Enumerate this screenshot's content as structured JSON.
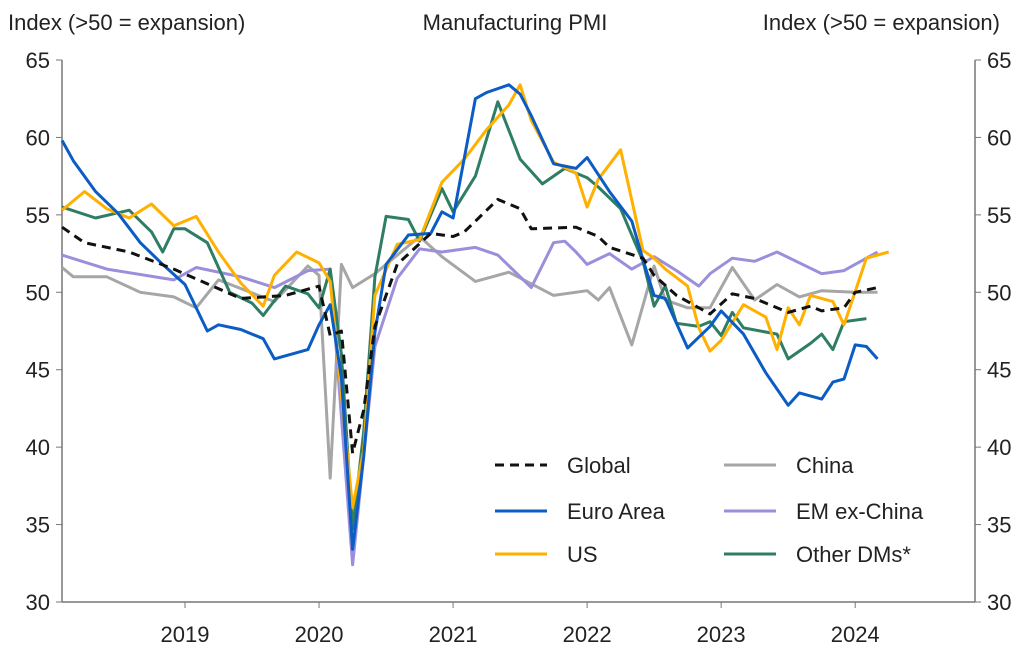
{
  "chart_data": {
    "type": "line",
    "title": "Manufacturing PMI",
    "ylabel_left": "Index (>50 = expansion)",
    "ylabel_right": "Index (>50 = expansion)",
    "ylim": [
      30,
      65
    ],
    "yticks": [
      30,
      35,
      40,
      45,
      50,
      55,
      60,
      65
    ],
    "xlim": [
      "2018-02",
      "2024-06"
    ],
    "xticks": [
      "2019",
      "2020",
      "2021",
      "2022",
      "2023",
      "2024"
    ],
    "grid": false,
    "legend_position": "bottom-right",
    "series": [
      {
        "name": "Global",
        "color": "#111111",
        "dash": true,
        "points": [
          [
            "2018-02",
            54.2
          ],
          [
            "2018-04",
            53.2
          ],
          [
            "2018-08",
            52.6
          ],
          [
            "2018-12",
            51.5
          ],
          [
            "2019-06",
            49.6
          ],
          [
            "2019-10",
            49.8
          ],
          [
            "2020-01",
            50.4
          ],
          [
            "2020-02",
            47.2
          ],
          [
            "2020-03",
            47.5
          ],
          [
            "2020-04",
            39.6
          ],
          [
            "2020-05",
            42.4
          ],
          [
            "2020-06",
            47.8
          ],
          [
            "2020-08",
            51.8
          ],
          [
            "2020-11",
            53.8
          ],
          [
            "2021-01",
            53.6
          ],
          [
            "2021-02",
            53.9
          ],
          [
            "2021-05",
            56.0
          ],
          [
            "2021-07",
            55.4
          ],
          [
            "2021-08",
            54.1
          ],
          [
            "2021-12",
            54.2
          ],
          [
            "2022-02",
            53.6
          ],
          [
            "2022-03",
            52.9
          ],
          [
            "2022-06",
            52.2
          ],
          [
            "2022-07",
            51.1
          ],
          [
            "2022-09",
            49.8
          ],
          [
            "2022-12",
            48.6
          ],
          [
            "2023-02",
            49.9
          ],
          [
            "2023-04",
            49.6
          ],
          [
            "2023-07",
            48.7
          ],
          [
            "2023-09",
            49.1
          ],
          [
            "2023-10",
            48.8
          ],
          [
            "2023-12",
            49.0
          ],
          [
            "2024-01",
            50.0
          ],
          [
            "2024-03",
            50.3
          ]
        ]
      },
      {
        "name": "Euro Area",
        "color": "#0b5cc4",
        "points": [
          [
            "2018-02",
            59.8
          ],
          [
            "2018-03",
            58.5
          ],
          [
            "2018-05",
            56.5
          ],
          [
            "2018-07",
            55.1
          ],
          [
            "2018-09",
            53.2
          ],
          [
            "2018-11",
            51.8
          ],
          [
            "2019-01",
            50.5
          ],
          [
            "2019-03",
            47.5
          ],
          [
            "2019-04",
            47.9
          ],
          [
            "2019-06",
            47.6
          ],
          [
            "2019-08",
            47.0
          ],
          [
            "2019-09",
            45.7
          ],
          [
            "2019-10",
            45.9
          ],
          [
            "2019-12",
            46.3
          ],
          [
            "2020-01",
            47.9
          ],
          [
            "2020-02",
            49.2
          ],
          [
            "2020-03",
            44.5
          ],
          [
            "2020-04",
            33.4
          ],
          [
            "2020-05",
            39.4
          ],
          [
            "2020-06",
            47.4
          ],
          [
            "2020-07",
            51.8
          ],
          [
            "2020-09",
            53.7
          ],
          [
            "2020-11",
            53.8
          ],
          [
            "2020-12",
            55.2
          ],
          [
            "2021-01",
            54.8
          ],
          [
            "2021-03",
            62.5
          ],
          [
            "2021-04",
            62.9
          ],
          [
            "2021-06",
            63.4
          ],
          [
            "2021-07",
            62.8
          ],
          [
            "2021-08",
            61.4
          ],
          [
            "2021-10",
            58.3
          ],
          [
            "2021-12",
            58.0
          ],
          [
            "2022-01",
            58.7
          ],
          [
            "2022-03",
            56.5
          ],
          [
            "2022-05",
            54.6
          ],
          [
            "2022-06",
            52.1
          ],
          [
            "2022-07",
            49.8
          ],
          [
            "2022-08",
            49.6
          ],
          [
            "2022-10",
            46.4
          ],
          [
            "2022-11",
            47.1
          ],
          [
            "2022-12",
            47.8
          ],
          [
            "2023-01",
            48.8
          ],
          [
            "2023-03",
            47.3
          ],
          [
            "2023-05",
            44.8
          ],
          [
            "2023-07",
            42.7
          ],
          [
            "2023-08",
            43.5
          ],
          [
            "2023-10",
            43.1
          ],
          [
            "2023-11",
            44.2
          ],
          [
            "2023-12",
            44.4
          ],
          [
            "2024-01",
            46.6
          ],
          [
            "2024-02",
            46.5
          ],
          [
            "2024-03",
            45.7
          ]
        ]
      },
      {
        "name": "US",
        "color": "#ffb000",
        "points": [
          [
            "2018-02",
            55.3
          ],
          [
            "2018-04",
            56.5
          ],
          [
            "2018-06",
            55.4
          ],
          [
            "2018-08",
            54.8
          ],
          [
            "2018-10",
            55.7
          ],
          [
            "2018-12",
            54.3
          ],
          [
            "2019-02",
            54.9
          ],
          [
            "2019-04",
            52.6
          ],
          [
            "2019-06",
            50.6
          ],
          [
            "2019-08",
            49.1
          ],
          [
            "2019-09",
            51.1
          ],
          [
            "2019-11",
            52.6
          ],
          [
            "2020-01",
            51.9
          ],
          [
            "2020-02",
            50.7
          ],
          [
            "2020-04",
            36.1
          ],
          [
            "2020-05",
            39.8
          ],
          [
            "2020-06",
            49.8
          ],
          [
            "2020-08",
            53.1
          ],
          [
            "2020-10",
            53.4
          ],
          [
            "2020-12",
            57.1
          ],
          [
            "2021-02",
            58.6
          ],
          [
            "2021-04",
            60.5
          ],
          [
            "2021-06",
            62.1
          ],
          [
            "2021-07",
            63.4
          ],
          [
            "2021-08",
            61.1
          ],
          [
            "2021-10",
            58.4
          ],
          [
            "2021-12",
            57.7
          ],
          [
            "2022-01",
            55.5
          ],
          [
            "2022-02",
            57.3
          ],
          [
            "2022-04",
            59.2
          ],
          [
            "2022-06",
            52.7
          ],
          [
            "2022-07",
            52.2
          ],
          [
            "2022-08",
            51.5
          ],
          [
            "2022-10",
            50.4
          ],
          [
            "2022-11",
            47.7
          ],
          [
            "2022-12",
            46.2
          ],
          [
            "2023-01",
            46.9
          ],
          [
            "2023-03",
            49.2
          ],
          [
            "2023-05",
            48.4
          ],
          [
            "2023-06",
            46.3
          ],
          [
            "2023-07",
            49.0
          ],
          [
            "2023-08",
            47.9
          ],
          [
            "2023-09",
            49.8
          ],
          [
            "2023-11",
            49.4
          ],
          [
            "2023-12",
            47.9
          ],
          [
            "2024-02",
            52.2
          ],
          [
            "2024-04",
            52.6
          ]
        ]
      },
      {
        "name": "China",
        "color": "#a6a6a6",
        "points": [
          [
            "2018-02",
            51.6
          ],
          [
            "2018-03",
            51.0
          ],
          [
            "2018-06",
            51.0
          ],
          [
            "2018-09",
            50.0
          ],
          [
            "2018-12",
            49.7
          ],
          [
            "2019-02",
            49.0
          ],
          [
            "2019-04",
            50.8
          ],
          [
            "2019-09",
            49.4
          ],
          [
            "2019-12",
            51.7
          ],
          [
            "2020-01",
            51.1
          ],
          [
            "2020-02",
            38.0
          ],
          [
            "2020-03",
            51.8
          ],
          [
            "2020-04",
            50.3
          ],
          [
            "2020-06",
            51.2
          ],
          [
            "2020-10",
            53.6
          ],
          [
            "2020-12",
            52.3
          ],
          [
            "2021-03",
            50.7
          ],
          [
            "2021-06",
            51.3
          ],
          [
            "2021-10",
            49.8
          ],
          [
            "2022-01",
            50.1
          ],
          [
            "2022-02",
            49.5
          ],
          [
            "2022-03",
            50.3
          ],
          [
            "2022-05",
            46.6
          ],
          [
            "2022-07",
            51.7
          ],
          [
            "2022-08",
            49.5
          ],
          [
            "2022-10",
            49.0
          ],
          [
            "2022-12",
            49.0
          ],
          [
            "2023-02",
            51.6
          ],
          [
            "2023-04",
            49.5
          ],
          [
            "2023-06",
            50.5
          ],
          [
            "2023-08",
            49.7
          ],
          [
            "2023-10",
            50.1
          ],
          [
            "2024-01",
            50.0
          ],
          [
            "2024-03",
            50.0
          ]
        ]
      },
      {
        "name": "EM ex-China",
        "color": "#9b8fdc",
        "points": [
          [
            "2018-02",
            52.4
          ],
          [
            "2018-06",
            51.5
          ],
          [
            "2018-12",
            50.8
          ],
          [
            "2019-02",
            51.6
          ],
          [
            "2019-06",
            51.0
          ],
          [
            "2019-09",
            50.3
          ],
          [
            "2019-12",
            51.4
          ],
          [
            "2020-02",
            51.5
          ],
          [
            "2020-04",
            32.4
          ],
          [
            "2020-06",
            46.5
          ],
          [
            "2020-08",
            50.9
          ],
          [
            "2020-10",
            52.8
          ],
          [
            "2020-12",
            52.6
          ],
          [
            "2021-03",
            52.9
          ],
          [
            "2021-05",
            52.4
          ],
          [
            "2021-08",
            50.3
          ],
          [
            "2021-10",
            53.2
          ],
          [
            "2021-11",
            53.3
          ],
          [
            "2021-12",
            52.6
          ],
          [
            "2022-01",
            51.8
          ],
          [
            "2022-03",
            52.5
          ],
          [
            "2022-05",
            51.5
          ],
          [
            "2022-07",
            52.3
          ],
          [
            "2022-09",
            51.4
          ],
          [
            "2022-11",
            50.4
          ],
          [
            "2022-12",
            51.2
          ],
          [
            "2023-02",
            52.2
          ],
          [
            "2023-04",
            52.0
          ],
          [
            "2023-06",
            52.6
          ],
          [
            "2023-10",
            51.2
          ],
          [
            "2023-12",
            51.4
          ],
          [
            "2024-03",
            52.6
          ]
        ]
      },
      {
        "name": "Other DMs*",
        "color": "#2e7d64",
        "points": [
          [
            "2018-02",
            55.5
          ],
          [
            "2018-05",
            54.8
          ],
          [
            "2018-08",
            55.3
          ],
          [
            "2018-10",
            53.9
          ],
          [
            "2018-11",
            52.6
          ],
          [
            "2018-12",
            54.1
          ],
          [
            "2019-01",
            54.1
          ],
          [
            "2019-03",
            53.2
          ],
          [
            "2019-05",
            50.0
          ],
          [
            "2019-07",
            49.3
          ],
          [
            "2019-08",
            48.5
          ],
          [
            "2019-10",
            50.4
          ],
          [
            "2019-12",
            49.9
          ],
          [
            "2020-01",
            49.0
          ],
          [
            "2020-02",
            51.5
          ],
          [
            "2020-03",
            46.0
          ],
          [
            "2020-04",
            34.7
          ],
          [
            "2020-05",
            41.0
          ],
          [
            "2020-06",
            51.0
          ],
          [
            "2020-07",
            54.9
          ],
          [
            "2020-09",
            54.7
          ],
          [
            "2020-10",
            53.3
          ],
          [
            "2020-12",
            56.7
          ],
          [
            "2021-01",
            55.2
          ],
          [
            "2021-03",
            57.5
          ],
          [
            "2021-05",
            62.3
          ],
          [
            "2021-07",
            58.6
          ],
          [
            "2021-09",
            57.0
          ],
          [
            "2021-11",
            58.0
          ],
          [
            "2022-01",
            57.4
          ],
          [
            "2022-02",
            56.8
          ],
          [
            "2022-04",
            55.4
          ],
          [
            "2022-06",
            52.0
          ],
          [
            "2022-07",
            49.1
          ],
          [
            "2022-08",
            50.4
          ],
          [
            "2022-09",
            48.0
          ],
          [
            "2022-11",
            47.8
          ],
          [
            "2022-12",
            48.1
          ],
          [
            "2023-01",
            47.2
          ],
          [
            "2023-02",
            48.7
          ],
          [
            "2023-03",
            47.7
          ],
          [
            "2023-06",
            47.3
          ],
          [
            "2023-07",
            45.7
          ],
          [
            "2023-09",
            46.7
          ],
          [
            "2023-10",
            47.3
          ],
          [
            "2023-11",
            46.3
          ],
          [
            "2023-12",
            48.1
          ],
          [
            "2024-02",
            48.3
          ]
        ]
      }
    ]
  }
}
